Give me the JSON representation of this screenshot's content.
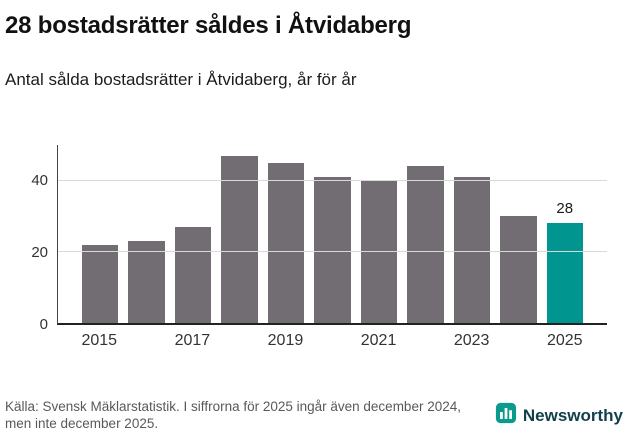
{
  "header": {
    "title": "28 bostadsrätter såldes i Åtvidaberg",
    "subtitle": "Antal sålda bostadsrätter i Åtvidaberg, år för år"
  },
  "chart_data": {
    "type": "bar",
    "categories": [
      "2015",
      "2016",
      "2017",
      "2018",
      "2019",
      "2020",
      "2021",
      "2022",
      "2023",
      "2024",
      "2025"
    ],
    "values": [
      22,
      23,
      27,
      47,
      45,
      41,
      40,
      44,
      41,
      30,
      28
    ],
    "title": "Antal sålda bostadsrätter i Åtvidaberg, år för år",
    "xlabel": "",
    "ylabel": "",
    "ylim": [
      0,
      50
    ],
    "yticks": [
      0,
      20,
      40
    ],
    "xtick_labels": [
      "2015",
      "2017",
      "2019",
      "2021",
      "2023",
      "2025"
    ],
    "grid": "horizontal",
    "legend": "none",
    "bar_color": "#716d73",
    "highlight_color": "#00968f",
    "highlight_index": 10,
    "data_label": {
      "index": 10,
      "text": "28"
    }
  },
  "footer": {
    "source": "Källa: Svensk Mäklarstatistik. I siffrorna för 2025 ingår även december 2024, men inte december 2025.",
    "brand": "Newsworthy",
    "brand_color": "#123f4a",
    "logo_color": "#0a9b8e"
  }
}
